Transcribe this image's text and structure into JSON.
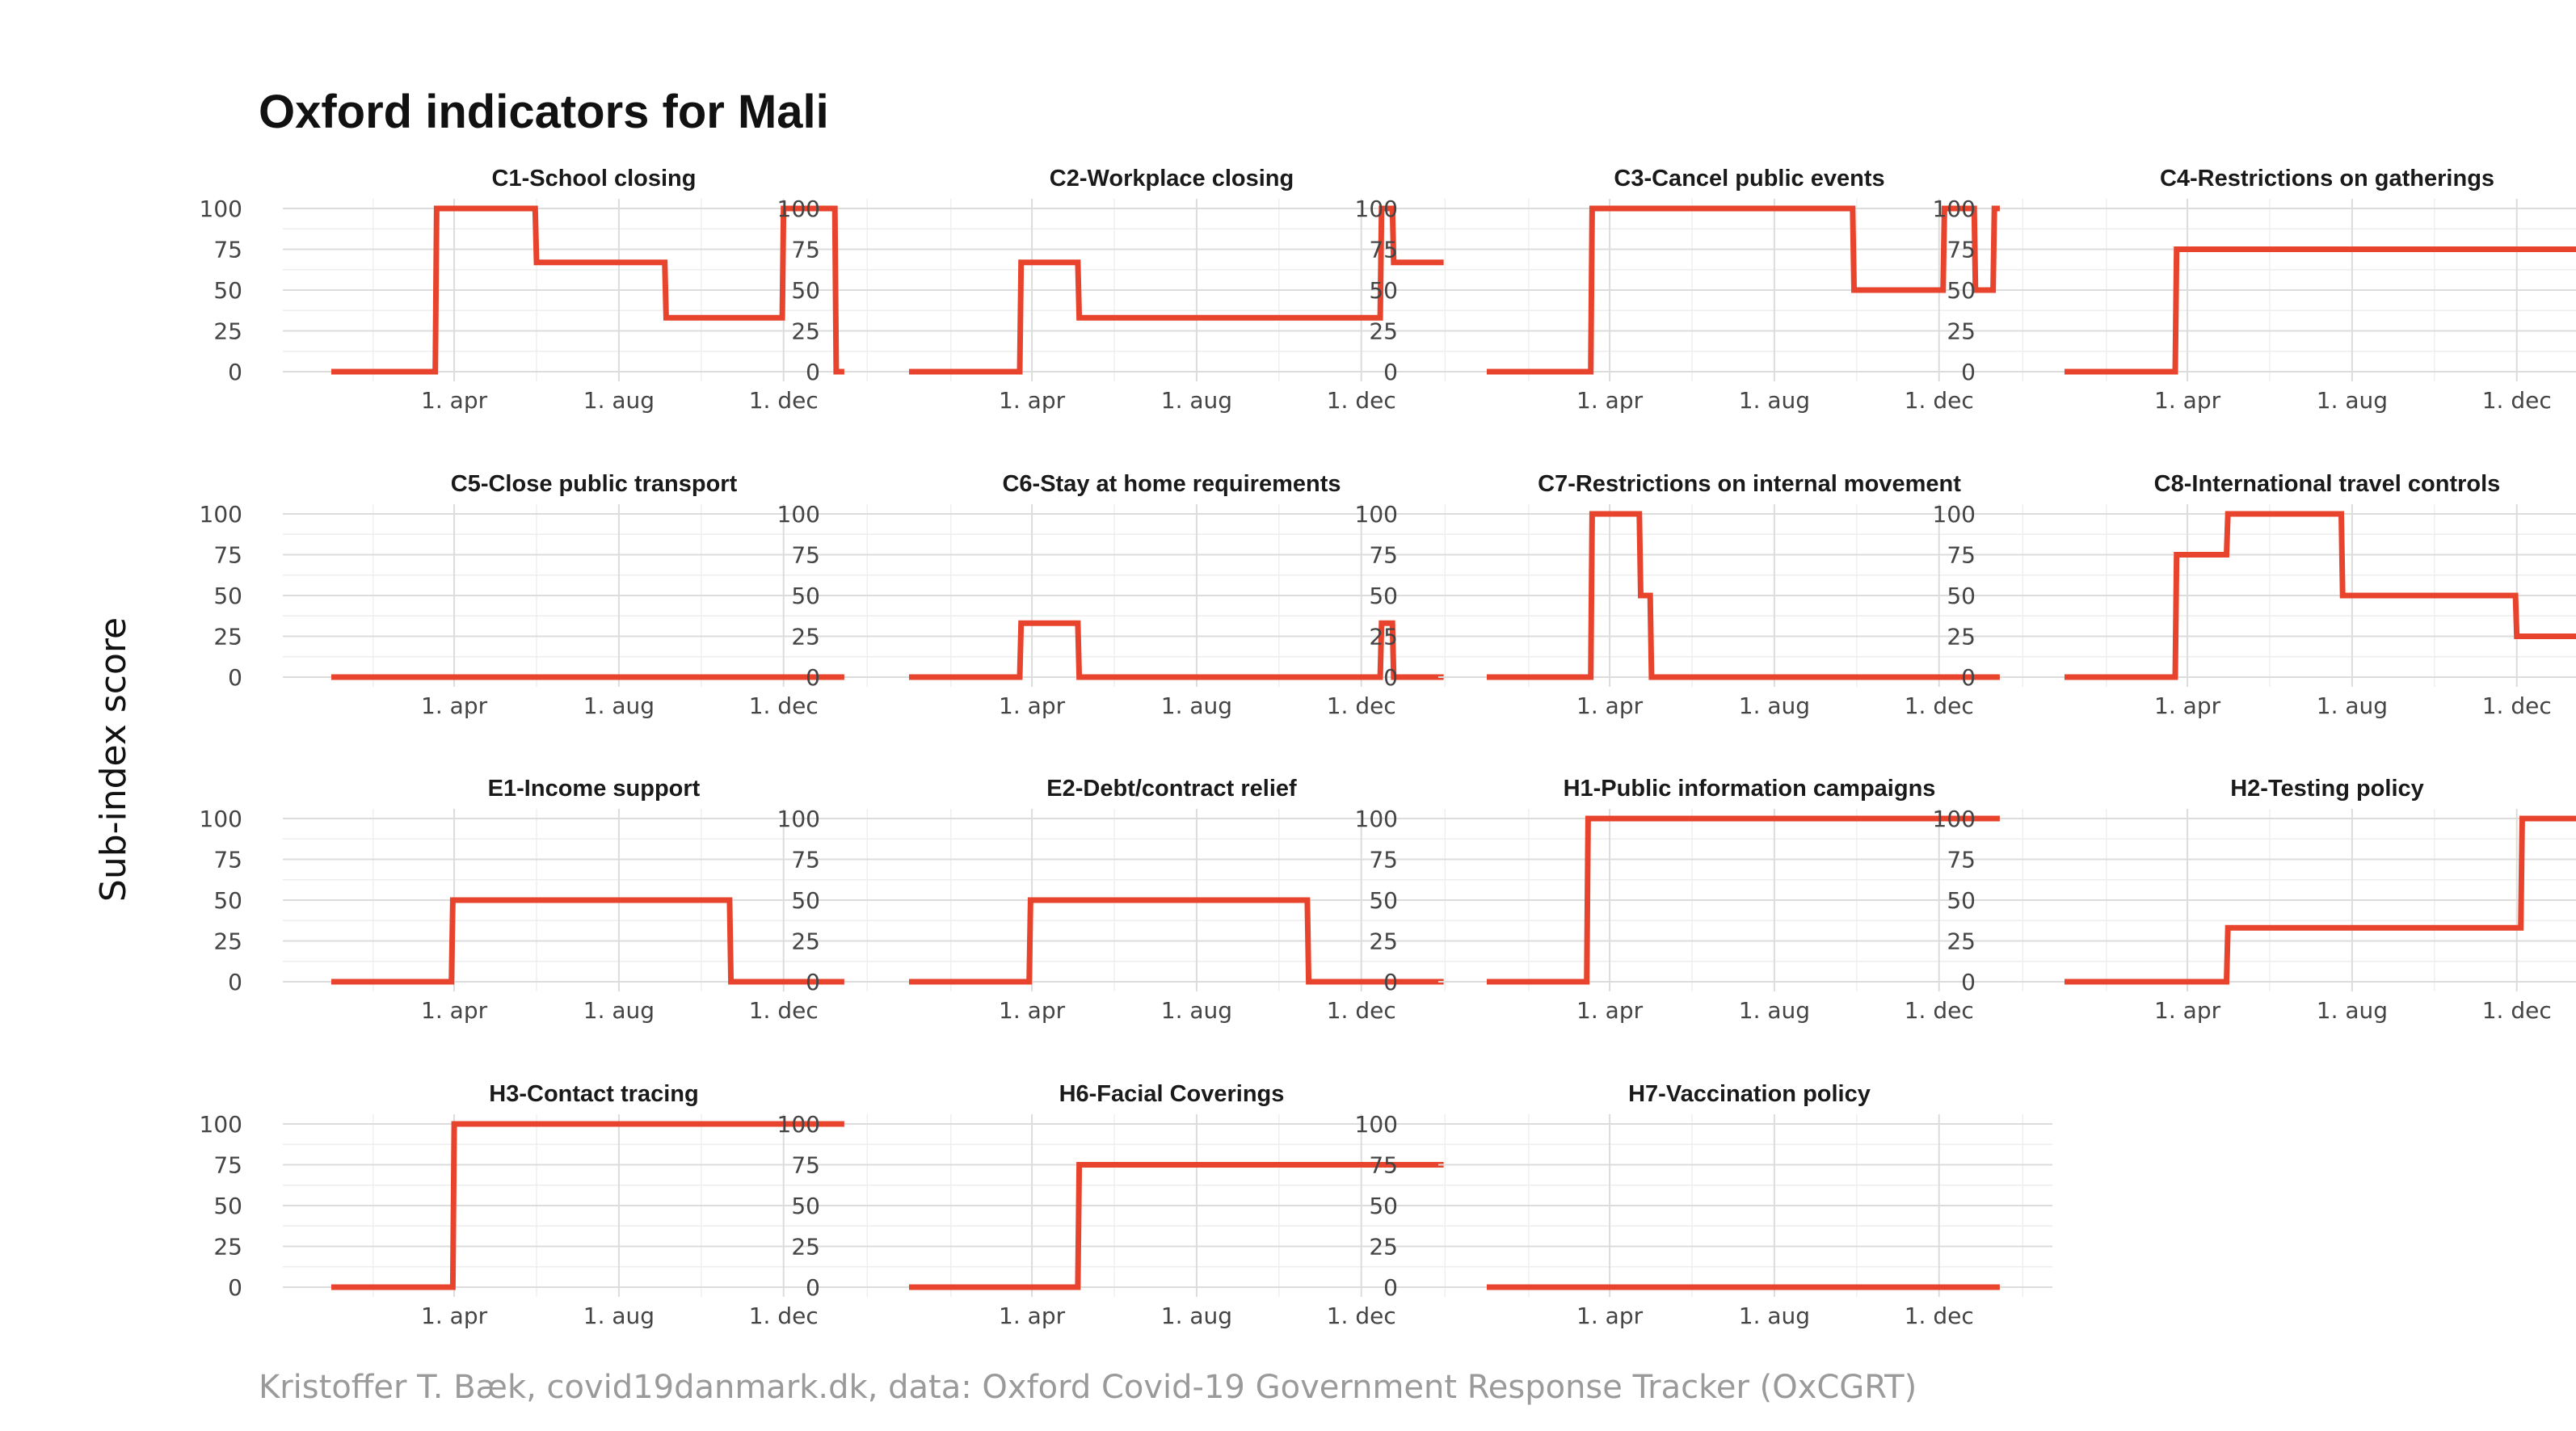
{
  "title": "Oxford indicators for Mali",
  "ylabel": "Sub-index score",
  "caption": "Kristoffer T. Bæk, covid19danmark.dk, data: Oxford Covid-19 Government Response Tracker (OxCGRT)",
  "colors": {
    "series": "#e8432c",
    "grid": "#dcdcdc",
    "caption": "#9a9a9a"
  },
  "chart_data": [
    {
      "type": "line",
      "title": "C1-School closing",
      "x_ticks": [
        "1. apr",
        "1. aug",
        "1. dec"
      ],
      "y_ticks": [
        0,
        25,
        50,
        75,
        100
      ],
      "ylim": [
        0,
        100
      ],
      "x": [
        "2020-01-01",
        "2020-03-18",
        "2020-03-19",
        "2020-05-31",
        "2020-06-01",
        "2020-09-04",
        "2020-09-05",
        "2020-11-30",
        "2020-12-01",
        "2021-01-08",
        "2021-01-09",
        "2021-01-15"
      ],
      "values": [
        0,
        0,
        100,
        100,
        67,
        67,
        33,
        33,
        100,
        100,
        0,
        0
      ]
    },
    {
      "type": "line",
      "title": "C2-Workplace closing",
      "x_ticks": [
        "1. apr",
        "1. aug",
        "1. dec"
      ],
      "y_ticks": [
        0,
        25,
        50,
        75,
        100
      ],
      "ylim": [
        0,
        100
      ],
      "x": [
        "2020-01-01",
        "2020-03-23",
        "2020-03-24",
        "2020-05-05",
        "2020-05-06",
        "2020-12-15",
        "2020-12-16",
        "2020-12-24",
        "2020-12-25",
        "2021-01-31"
      ],
      "values": [
        0,
        0,
        67,
        67,
        33,
        33,
        100,
        100,
        67,
        67
      ]
    },
    {
      "type": "line",
      "title": "C3-Cancel public events",
      "x_ticks": [
        "1. apr",
        "1. aug",
        "1. dec"
      ],
      "y_ticks": [
        0,
        25,
        50,
        75,
        100
      ],
      "ylim": [
        0,
        100
      ],
      "x": [
        "2020-01-01",
        "2020-03-18",
        "2020-03-19",
        "2020-09-28",
        "2020-09-29",
        "2020-12-04",
        "2020-12-05",
        "2020-12-27",
        "2020-12-28",
        "2021-01-10",
        "2021-01-11",
        "2021-01-15"
      ],
      "values": [
        0,
        0,
        100,
        100,
        50,
        50,
        100,
        100,
        50,
        50,
        100,
        100
      ]
    },
    {
      "type": "line",
      "title": "C4-Restrictions on gatherings",
      "x_ticks": [
        "1. apr",
        "1. aug",
        "1. dec"
      ],
      "y_ticks": [
        0,
        25,
        50,
        75,
        100
      ],
      "ylim": [
        0,
        100
      ],
      "x": [
        "2020-01-01",
        "2020-03-23",
        "2020-03-24",
        "2021-01-31"
      ],
      "values": [
        0,
        0,
        75,
        75
      ]
    },
    {
      "type": "line",
      "title": "C5-Close public transport",
      "x_ticks": [
        "1. apr",
        "1. aug",
        "1. dec"
      ],
      "y_ticks": [
        0,
        25,
        50,
        75,
        100
      ],
      "ylim": [
        0,
        100
      ],
      "x": [
        "2020-01-01",
        "2021-01-15"
      ],
      "values": [
        0,
        0
      ]
    },
    {
      "type": "line",
      "title": "C6-Stay at home requirements",
      "x_ticks": [
        "1. apr",
        "1. aug",
        "1. dec"
      ],
      "y_ticks": [
        0,
        25,
        50,
        75,
        100
      ],
      "ylim": [
        0,
        100
      ],
      "x": [
        "2020-01-01",
        "2020-03-23",
        "2020-03-24",
        "2020-05-05",
        "2020-05-06",
        "2020-12-15",
        "2020-12-16",
        "2020-12-24",
        "2020-12-25",
        "2021-01-31"
      ],
      "values": [
        0,
        0,
        33,
        33,
        0,
        0,
        33,
        33,
        0,
        0
      ]
    },
    {
      "type": "line",
      "title": "C7-Restrictions on internal movement",
      "x_ticks": [
        "1. apr",
        "1. aug",
        "1. dec"
      ],
      "y_ticks": [
        0,
        25,
        50,
        75,
        100
      ],
      "ylim": [
        0,
        100
      ],
      "x": [
        "2020-01-01",
        "2020-03-18",
        "2020-03-19",
        "2020-04-23",
        "2020-04-24",
        "2020-05-01",
        "2020-05-02",
        "2021-01-15"
      ],
      "values": [
        0,
        0,
        100,
        100,
        50,
        50,
        0,
        0
      ]
    },
    {
      "type": "line",
      "title": "C8-International travel controls",
      "x_ticks": [
        "1. apr",
        "1. aug",
        "1. dec"
      ],
      "y_ticks": [
        0,
        25,
        50,
        75,
        100
      ],
      "ylim": [
        0,
        100
      ],
      "x": [
        "2020-01-01",
        "2020-03-23",
        "2020-03-24",
        "2020-04-30",
        "2020-05-01",
        "2020-07-24",
        "2020-07-25",
        "2020-11-30",
        "2020-12-01",
        "2021-01-31"
      ],
      "values": [
        0,
        0,
        75,
        75,
        100,
        100,
        50,
        50,
        25,
        25
      ]
    },
    {
      "type": "line",
      "title": "E1-Income support",
      "x_ticks": [
        "1. apr",
        "1. aug",
        "1. dec"
      ],
      "y_ticks": [
        0,
        25,
        50,
        75,
        100
      ],
      "ylim": [
        0,
        100
      ],
      "x": [
        "2020-01-01",
        "2020-03-30",
        "2020-03-31",
        "2020-10-22",
        "2020-10-23",
        "2021-01-15"
      ],
      "values": [
        0,
        0,
        50,
        50,
        0,
        0
      ]
    },
    {
      "type": "line",
      "title": "E2-Debt/contract relief",
      "x_ticks": [
        "1. apr",
        "1. aug",
        "1. dec"
      ],
      "y_ticks": [
        0,
        25,
        50,
        75,
        100
      ],
      "ylim": [
        0,
        100
      ],
      "x": [
        "2020-01-01",
        "2020-03-30",
        "2020-03-31",
        "2020-10-22",
        "2020-10-23",
        "2021-01-31"
      ],
      "values": [
        0,
        0,
        50,
        50,
        0,
        0
      ]
    },
    {
      "type": "line",
      "title": "H1-Public information campaigns",
      "x_ticks": [
        "1. apr",
        "1. aug",
        "1. dec"
      ],
      "y_ticks": [
        0,
        25,
        50,
        75,
        100
      ],
      "ylim": [
        0,
        100
      ],
      "x": [
        "2020-01-01",
        "2020-03-15",
        "2020-03-16",
        "2021-01-15"
      ],
      "values": [
        0,
        0,
        100,
        100
      ]
    },
    {
      "type": "line",
      "title": "H2-Testing policy",
      "x_ticks": [
        "1. apr",
        "1. aug",
        "1. dec"
      ],
      "y_ticks": [
        0,
        25,
        50,
        75,
        100
      ],
      "ylim": [
        0,
        100
      ],
      "x": [
        "2020-01-01",
        "2020-04-30",
        "2020-05-01",
        "2020-12-04",
        "2020-12-05",
        "2021-01-31"
      ],
      "values": [
        0,
        0,
        33,
        33,
        100,
        100
      ]
    },
    {
      "type": "line",
      "title": "H3-Contact tracing",
      "x_ticks": [
        "1. apr",
        "1. aug",
        "1. dec"
      ],
      "y_ticks": [
        0,
        25,
        50,
        75,
        100
      ],
      "ylim": [
        0,
        100
      ],
      "x": [
        "2020-01-01",
        "2020-03-31",
        "2020-04-01",
        "2021-01-15"
      ],
      "values": [
        0,
        0,
        100,
        100
      ]
    },
    {
      "type": "line",
      "title": "H6-Facial Coverings",
      "x_ticks": [
        "1. apr",
        "1. aug",
        "1. dec"
      ],
      "y_ticks": [
        0,
        25,
        50,
        75,
        100
      ],
      "ylim": [
        0,
        100
      ],
      "x": [
        "2020-01-01",
        "2020-05-05",
        "2020-05-06",
        "2021-01-31"
      ],
      "values": [
        0,
        0,
        75,
        75
      ]
    },
    {
      "type": "line",
      "title": "H7-Vaccination policy",
      "x_ticks": [
        "1. apr",
        "1. aug",
        "1. dec"
      ],
      "y_ticks": [
        0,
        25,
        50,
        75,
        100
      ],
      "ylim": [
        0,
        100
      ],
      "x": [
        "2020-01-01",
        "2021-01-15"
      ],
      "values": [
        0,
        0
      ]
    }
  ]
}
